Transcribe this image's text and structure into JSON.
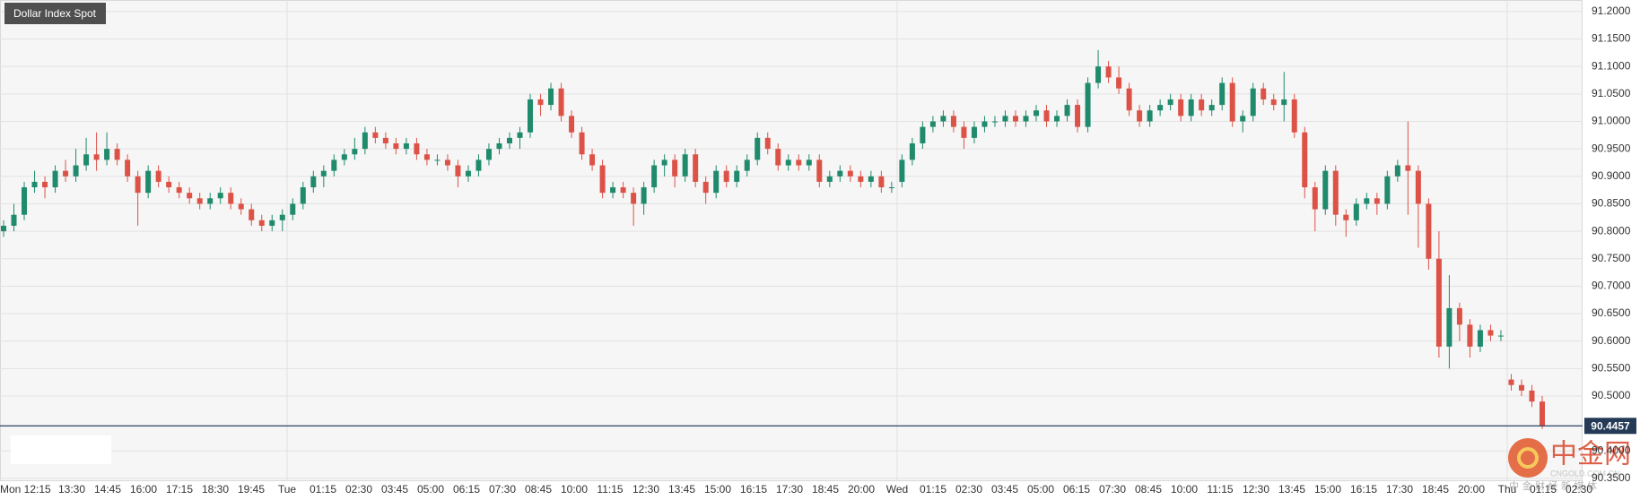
{
  "chart_data": {
    "type": "candlestick",
    "title": "Dollar Index Spot",
    "up_color": "#1f8a6c",
    "down_color": "#dd5247",
    "ylim": [
      90.345,
      91.221
    ],
    "yticks": [
      {
        "value": 90.35,
        "label": "90.3500"
      },
      {
        "value": 90.4,
        "label": "90.4000"
      },
      {
        "value": 90.5,
        "label": "90.5000"
      },
      {
        "value": 90.55,
        "label": "90.5500"
      },
      {
        "value": 90.6,
        "label": "90.6000"
      },
      {
        "value": 90.65,
        "label": "90.6500"
      },
      {
        "value": 90.7,
        "label": "90.7000"
      },
      {
        "value": 90.75,
        "label": "90.7500"
      },
      {
        "value": 90.8,
        "label": "90.8000"
      },
      {
        "value": 90.85,
        "label": "90.8500"
      },
      {
        "value": 90.9,
        "label": "90.9000"
      },
      {
        "value": 90.95,
        "label": "90.9500"
      },
      {
        "value": 91.0,
        "label": "91.0000"
      },
      {
        "value": 91.05,
        "label": "91.0500"
      },
      {
        "value": 91.1,
        "label": "91.1000"
      },
      {
        "value": 91.15,
        "label": "91.1500"
      },
      {
        "value": 91.2,
        "label": "91.2000"
      }
    ],
    "grid": true,
    "last_price": 90.4457,
    "categories": [
      "Mon 12:15",
      "13:30",
      "14:45",
      "16:00",
      "17:15",
      "18:30",
      "19:45",
      "Tue",
      "01:15",
      "02:30",
      "03:45",
      "05:00",
      "06:15",
      "07:30",
      "08:45",
      "10:00",
      "11:15",
      "12:30",
      "13:45",
      "15:00",
      "16:15",
      "17:30",
      "18:45",
      "20:00",
      "Wed",
      "01:15",
      "02:30",
      "03:45",
      "05:00",
      "06:15",
      "07:30",
      "08:45",
      "10:00",
      "11:15",
      "12:30",
      "13:45",
      "15:00",
      "16:15",
      "17:30",
      "18:45",
      "20:00",
      "Thu",
      "01:15",
      "02:30"
    ],
    "ohlc": [
      [
        90.8,
        90.82,
        90.79,
        90.81
      ],
      [
        90.81,
        90.85,
        90.8,
        90.83
      ],
      [
        90.83,
        90.89,
        90.82,
        90.88
      ],
      [
        90.88,
        90.91,
        90.87,
        90.89
      ],
      [
        90.89,
        90.9,
        90.86,
        90.88
      ],
      [
        90.88,
        90.92,
        90.87,
        90.91
      ],
      [
        90.91,
        90.93,
        90.89,
        90.9
      ],
      [
        90.9,
        90.95,
        90.89,
        90.92
      ],
      [
        90.92,
        90.97,
        90.91,
        90.94
      ],
      [
        90.94,
        90.98,
        90.91,
        90.93
      ],
      [
        90.93,
        90.98,
        90.92,
        90.95
      ],
      [
        90.95,
        90.96,
        90.92,
        90.93
      ],
      [
        90.93,
        90.94,
        90.89,
        90.9
      ],
      [
        90.9,
        90.91,
        90.81,
        90.87
      ],
      [
        90.87,
        90.92,
        90.86,
        90.91
      ],
      [
        90.91,
        90.92,
        90.88,
        90.89
      ],
      [
        90.89,
        90.9,
        90.87,
        90.88
      ],
      [
        90.88,
        90.89,
        90.86,
        90.87
      ],
      [
        90.87,
        90.88,
        90.85,
        90.86
      ],
      [
        90.86,
        90.87,
        90.84,
        90.85
      ],
      [
        90.85,
        90.87,
        90.84,
        90.86
      ],
      [
        90.86,
        90.88,
        90.85,
        90.87
      ],
      [
        90.87,
        90.88,
        90.84,
        90.85
      ],
      [
        90.85,
        90.86,
        90.83,
        90.84
      ],
      [
        90.84,
        90.85,
        90.81,
        90.82
      ],
      [
        90.82,
        90.83,
        90.8,
        90.81
      ],
      [
        90.81,
        90.83,
        90.8,
        90.82
      ],
      [
        90.82,
        90.84,
        90.8,
        90.83
      ],
      [
        90.83,
        90.86,
        90.82,
        90.85
      ],
      [
        90.85,
        90.89,
        90.84,
        90.88
      ],
      [
        90.88,
        90.91,
        90.87,
        90.9
      ],
      [
        90.9,
        90.92,
        90.88,
        90.91
      ],
      [
        90.91,
        90.94,
        90.9,
        90.93
      ],
      [
        90.93,
        90.95,
        90.92,
        90.94
      ],
      [
        90.94,
        90.97,
        90.93,
        90.95
      ],
      [
        90.95,
        90.99,
        90.94,
        90.98
      ],
      [
        90.98,
        90.99,
        90.96,
        90.97
      ],
      [
        90.97,
        90.98,
        90.95,
        90.96
      ],
      [
        90.96,
        90.97,
        90.94,
        90.95
      ],
      [
        90.95,
        90.97,
        90.94,
        90.96
      ],
      [
        90.96,
        90.97,
        90.93,
        90.94
      ],
      [
        90.94,
        90.95,
        90.92,
        90.93
      ],
      [
        90.93,
        90.94,
        90.92,
        90.93
      ],
      [
        90.93,
        90.94,
        90.91,
        90.92
      ],
      [
        90.92,
        90.93,
        90.88,
        90.9
      ],
      [
        90.9,
        90.92,
        90.89,
        90.91
      ],
      [
        90.91,
        90.94,
        90.9,
        90.93
      ],
      [
        90.93,
        90.96,
        90.92,
        90.95
      ],
      [
        90.95,
        90.97,
        90.94,
        90.96
      ],
      [
        90.96,
        90.98,
        90.95,
        90.97
      ],
      [
        90.97,
        90.99,
        90.95,
        90.98
      ],
      [
        90.98,
        91.05,
        90.97,
        91.04
      ],
      [
        91.04,
        91.05,
        91.01,
        91.03
      ],
      [
        91.03,
        91.07,
        91.02,
        91.06
      ],
      [
        91.06,
        91.07,
        91.0,
        91.01
      ],
      [
        91.01,
        91.02,
        90.97,
        90.98
      ],
      [
        90.98,
        90.99,
        90.93,
        90.94
      ],
      [
        90.94,
        90.95,
        90.91,
        90.92
      ],
      [
        90.92,
        90.93,
        90.86,
        90.87
      ],
      [
        90.87,
        90.89,
        90.86,
        90.88
      ],
      [
        90.88,
        90.89,
        90.86,
        90.87
      ],
      [
        90.87,
        90.88,
        90.81,
        90.85
      ],
      [
        90.85,
        90.89,
        90.83,
        90.88
      ],
      [
        90.88,
        90.93,
        90.87,
        90.92
      ],
      [
        90.92,
        90.94,
        90.9,
        90.93
      ],
      [
        90.93,
        90.94,
        90.88,
        90.9
      ],
      [
        90.9,
        90.95,
        90.89,
        90.94
      ],
      [
        90.94,
        90.95,
        90.88,
        90.89
      ],
      [
        90.89,
        90.9,
        90.85,
        90.87
      ],
      [
        90.87,
        90.92,
        90.86,
        90.91
      ],
      [
        90.91,
        90.92,
        90.88,
        90.89
      ],
      [
        90.89,
        90.92,
        90.88,
        90.91
      ],
      [
        90.91,
        90.94,
        90.9,
        90.93
      ],
      [
        90.93,
        90.98,
        90.92,
        90.97
      ],
      [
        90.97,
        90.98,
        90.94,
        90.95
      ],
      [
        90.95,
        90.96,
        90.91,
        90.92
      ],
      [
        90.92,
        90.94,
        90.91,
        90.93
      ],
      [
        90.93,
        90.94,
        90.91,
        90.92
      ],
      [
        90.92,
        90.94,
        90.91,
        90.93
      ],
      [
        90.93,
        90.94,
        90.88,
        90.89
      ],
      [
        90.89,
        90.91,
        90.88,
        90.9
      ],
      [
        90.9,
        90.92,
        90.89,
        90.91
      ],
      [
        90.91,
        90.92,
        90.89,
        90.9
      ],
      [
        90.9,
        90.91,
        90.88,
        90.89
      ],
      [
        90.89,
        90.91,
        90.88,
        90.9
      ],
      [
        90.9,
        90.91,
        90.87,
        90.88
      ],
      [
        90.88,
        90.89,
        90.87,
        90.88
      ],
      [
        90.89,
        90.94,
        90.88,
        90.93
      ],
      [
        90.93,
        90.97,
        90.92,
        90.96
      ],
      [
        90.96,
        91.0,
        90.95,
        90.99
      ],
      [
        90.99,
        91.01,
        90.98,
        91.0
      ],
      [
        91.0,
        91.02,
        90.99,
        91.01
      ],
      [
        91.01,
        91.02,
        90.98,
        90.99
      ],
      [
        90.99,
        91.0,
        90.95,
        90.97
      ],
      [
        90.97,
        91.0,
        90.96,
        90.99
      ],
      [
        90.99,
        91.01,
        90.98,
        91.0
      ],
      [
        91.0,
        91.01,
        90.99,
        91.0
      ],
      [
        91.0,
        91.02,
        90.99,
        91.01
      ],
      [
        91.01,
        91.02,
        90.99,
        91.0
      ],
      [
        91.0,
        91.02,
        90.99,
        91.01
      ],
      [
        91.01,
        91.03,
        91.0,
        91.02
      ],
      [
        91.02,
        91.03,
        90.99,
        91.0
      ],
      [
        91.0,
        91.02,
        90.99,
        91.01
      ],
      [
        91.01,
        91.04,
        91.0,
        91.03
      ],
      [
        91.03,
        91.04,
        90.98,
        90.99
      ],
      [
        90.99,
        91.08,
        90.98,
        91.07
      ],
      [
        91.07,
        91.13,
        91.06,
        91.1
      ],
      [
        91.1,
        91.11,
        91.07,
        91.08
      ],
      [
        91.08,
        91.1,
        91.05,
        91.06
      ],
      [
        91.06,
        91.07,
        91.01,
        91.02
      ],
      [
        91.02,
        91.03,
        90.99,
        91.0
      ],
      [
        91.0,
        91.03,
        90.99,
        91.02
      ],
      [
        91.02,
        91.04,
        91.01,
        91.03
      ],
      [
        91.03,
        91.05,
        91.02,
        91.04
      ],
      [
        91.04,
        91.05,
        91.0,
        91.01
      ],
      [
        91.01,
        91.05,
        91.0,
        91.04
      ],
      [
        91.04,
        91.05,
        91.01,
        91.02
      ],
      [
        91.02,
        91.04,
        91.01,
        91.03
      ],
      [
        91.03,
        91.08,
        91.02,
        91.07
      ],
      [
        91.07,
        91.08,
        90.99,
        91.0
      ],
      [
        91.0,
        91.02,
        90.98,
        91.01
      ],
      [
        91.01,
        91.07,
        91.0,
        91.06
      ],
      [
        91.06,
        91.07,
        91.03,
        91.04
      ],
      [
        91.04,
        91.05,
        91.02,
        91.03
      ],
      [
        91.03,
        91.09,
        91.0,
        91.04
      ],
      [
        91.04,
        91.05,
        90.97,
        90.98
      ],
      [
        90.98,
        90.99,
        90.86,
        90.88
      ],
      [
        90.88,
        90.89,
        90.8,
        90.84
      ],
      [
        90.84,
        90.92,
        90.83,
        90.91
      ],
      [
        90.91,
        90.92,
        90.81,
        90.83
      ],
      [
        90.83,
        90.84,
        90.79,
        90.82
      ],
      [
        90.82,
        90.86,
        90.81,
        90.85
      ],
      [
        90.85,
        90.87,
        90.84,
        90.86
      ],
      [
        90.86,
        90.87,
        90.83,
        90.85
      ],
      [
        90.85,
        90.91,
        90.84,
        90.9
      ],
      [
        90.9,
        90.93,
        90.89,
        90.92
      ],
      [
        90.92,
        91.0,
        90.83,
        90.91
      ],
      [
        90.91,
        90.92,
        90.77,
        90.85
      ],
      [
        90.85,
        90.86,
        90.73,
        90.75
      ],
      [
        90.75,
        90.8,
        90.57,
        90.59
      ],
      [
        90.59,
        90.72,
        90.55,
        90.66
      ],
      [
        90.66,
        90.67,
        90.6,
        90.63
      ],
      [
        90.63,
        90.64,
        90.57,
        90.59
      ],
      [
        90.59,
        90.63,
        90.58,
        90.62
      ],
      [
        90.62,
        90.63,
        90.6,
        90.61
      ],
      [
        90.61,
        90.62,
        90.6,
        90.61
      ],
      [
        90.53,
        90.54,
        90.51,
        90.52
      ],
      [
        90.52,
        90.53,
        90.5,
        90.51
      ],
      [
        90.51,
        90.52,
        90.48,
        90.49
      ],
      [
        90.49,
        90.5,
        90.44,
        90.4457
      ]
    ],
    "watermark": {
      "name": "中金网",
      "domain": "CNGOLD.COM.CN",
      "slogan": "中 金 财 经 新 媒 体"
    }
  }
}
